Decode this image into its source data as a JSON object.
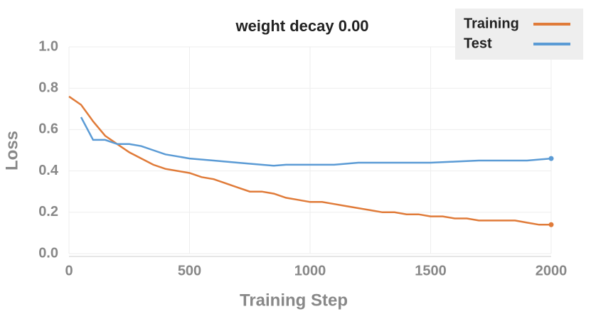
{
  "chart_data": {
    "type": "line",
    "title": "weight decay 0.00",
    "xlabel": "Training Step",
    "ylabel": "Loss",
    "xlim": [
      0,
      2000
    ],
    "ylim": [
      0,
      1
    ],
    "xticks": [
      0,
      500,
      1000,
      1500,
      2000
    ],
    "yticks": [
      {
        "value": 0,
        "label": "0.0"
      },
      0.2,
      0.4,
      0.6,
      0.8,
      {
        "value": 1,
        "label": "1.0"
      }
    ],
    "grid": true,
    "legend": "upper right",
    "series": [
      {
        "name": "Training",
        "color": "#e07b39",
        "x": [
          0,
          50,
          100,
          150,
          200,
          250,
          300,
          350,
          400,
          450,
          500,
          550,
          600,
          650,
          700,
          750,
          800,
          850,
          900,
          950,
          1000,
          1050,
          1100,
          1150,
          1200,
          1250,
          1300,
          1350,
          1400,
          1450,
          1500,
          1550,
          1600,
          1650,
          1700,
          1750,
          1800,
          1850,
          1900,
          1950,
          2000
        ],
        "values": [
          0.76,
          0.72,
          0.64,
          0.57,
          0.53,
          0.49,
          0.46,
          0.43,
          0.41,
          0.4,
          0.39,
          0.37,
          0.36,
          0.34,
          0.32,
          0.3,
          0.3,
          0.29,
          0.27,
          0.26,
          0.25,
          0.25,
          0.24,
          0.23,
          0.22,
          0.21,
          0.2,
          0.2,
          0.19,
          0.19,
          0.18,
          0.18,
          0.17,
          0.17,
          0.16,
          0.16,
          0.16,
          0.16,
          0.15,
          0.14,
          0.14
        ]
      },
      {
        "name": "Test",
        "color": "#5b9bd5",
        "x": [
          50,
          100,
          150,
          200,
          250,
          300,
          350,
          400,
          450,
          500,
          600,
          700,
          800,
          850,
          900,
          1000,
          1100,
          1200,
          1300,
          1400,
          1500,
          1600,
          1700,
          1800,
          1900,
          2000
        ],
        "values": [
          0.66,
          0.55,
          0.55,
          0.53,
          0.53,
          0.52,
          0.5,
          0.48,
          0.47,
          0.46,
          0.45,
          0.44,
          0.43,
          0.425,
          0.43,
          0.43,
          0.43,
          0.44,
          0.44,
          0.44,
          0.44,
          0.445,
          0.45,
          0.45,
          0.45,
          0.46
        ]
      }
    ]
  }
}
